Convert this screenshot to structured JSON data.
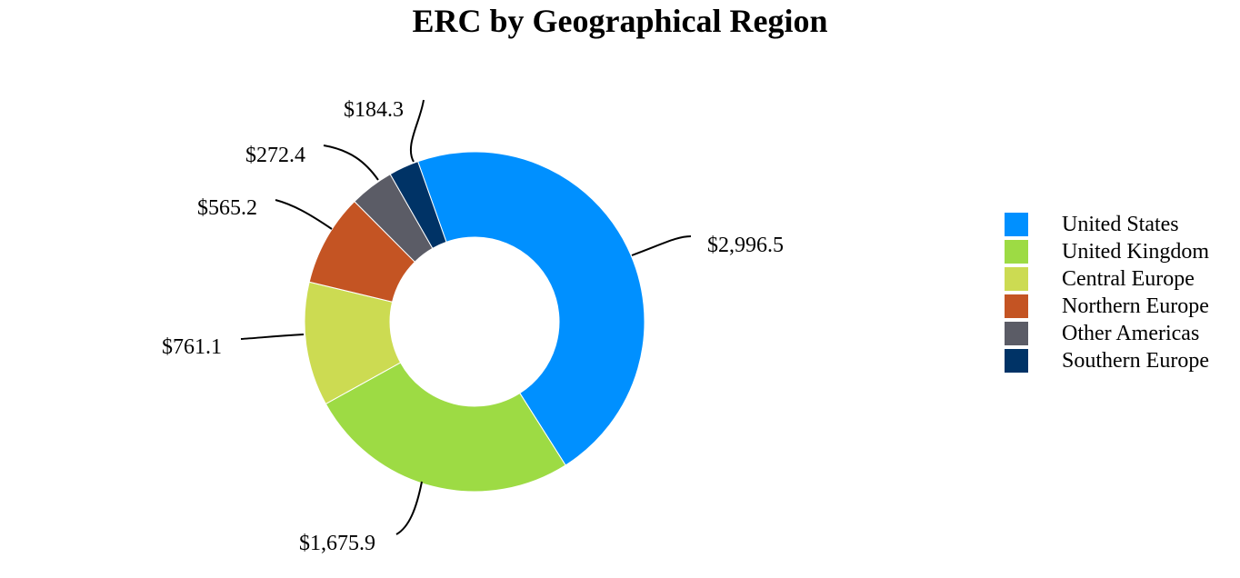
{
  "chart_data": {
    "type": "pie",
    "title": "ERC by Geographical Region",
    "donut": true,
    "legend_position": "right",
    "categories": [
      "United States",
      "United Kingdom",
      "Central Europe",
      "Northern Europe",
      "Other Americas",
      "Southern Europe"
    ],
    "values": [
      2996.5,
      1675.9,
      761.1,
      565.2,
      272.4,
      184.3
    ],
    "labels": [
      "$2,996.5",
      "$1,675.9",
      "$761.1",
      "$565.2",
      "$272.4",
      "$184.3"
    ],
    "colors": [
      "#0090FF",
      "#9DDB44",
      "#CCDB52",
      "#C45423",
      "#5B5C66",
      "#003366"
    ]
  }
}
